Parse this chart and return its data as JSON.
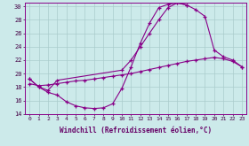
{
  "xlabel": "Windchill (Refroidissement éolien,°C)",
  "ylabel": "",
  "xlim": [
    -0.5,
    23.5
  ],
  "ylim": [
    14,
    30.5
  ],
  "xticks": [
    0,
    1,
    2,
    3,
    4,
    5,
    6,
    7,
    8,
    9,
    10,
    11,
    12,
    13,
    14,
    15,
    16,
    17,
    18,
    19,
    20,
    21,
    22,
    23
  ],
  "yticks": [
    14,
    16,
    18,
    20,
    22,
    24,
    26,
    28,
    30
  ],
  "bg_color": "#cceaea",
  "line_color": "#880088",
  "grid_color": "#aacccc",
  "line1_x": [
    0,
    1,
    2,
    3,
    4,
    5,
    6,
    7,
    8,
    9,
    10,
    11,
    12,
    13,
    14,
    15,
    16,
    17
  ],
  "line1_y": [
    19.2,
    18.0,
    17.2,
    16.8,
    15.8,
    15.2,
    14.9,
    14.8,
    14.9,
    15.5,
    17.8,
    21.0,
    24.5,
    27.5,
    29.8,
    30.3,
    30.5,
    30.2
  ],
  "line2_x": [
    0,
    1,
    2,
    3,
    10,
    11,
    12,
    13,
    14,
    15,
    16,
    17,
    18,
    19,
    20,
    21,
    22,
    23
  ],
  "line2_y": [
    19.2,
    18.0,
    17.5,
    19.0,
    20.5,
    22.0,
    24.0,
    26.0,
    28.0,
    29.8,
    30.5,
    30.2,
    29.5,
    28.5,
    23.5,
    22.5,
    22.0,
    21.0
  ],
  "line3_x": [
    0,
    1,
    2,
    3,
    4,
    5,
    6,
    7,
    8,
    9,
    10,
    11,
    12,
    13,
    14,
    15,
    16,
    17,
    18,
    19,
    20,
    21,
    22,
    23
  ],
  "line3_y": [
    18.5,
    18.2,
    18.3,
    18.5,
    18.7,
    18.9,
    19.0,
    19.2,
    19.4,
    19.6,
    19.8,
    20.0,
    20.3,
    20.6,
    20.9,
    21.2,
    21.5,
    21.8,
    22.0,
    22.2,
    22.4,
    22.2,
    21.8,
    21.0
  ]
}
